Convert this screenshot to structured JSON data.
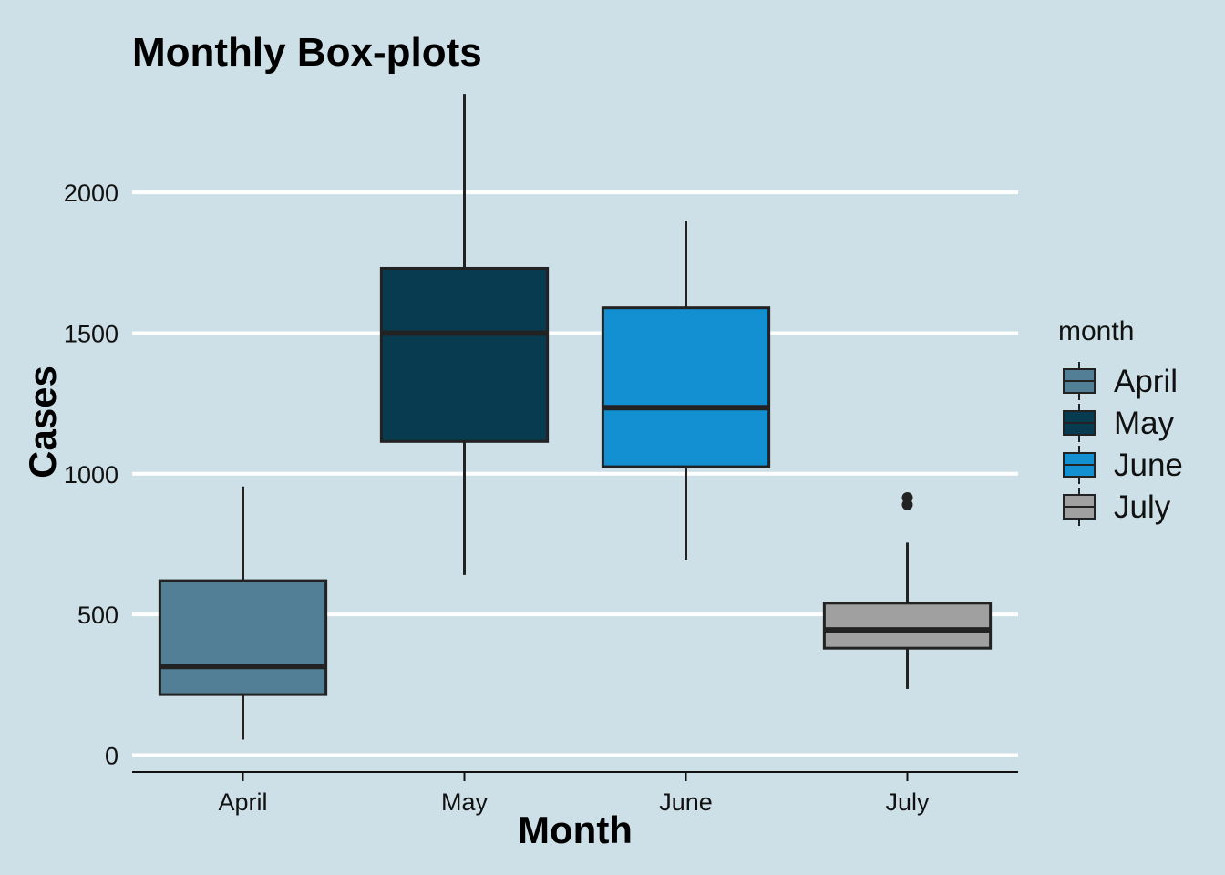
{
  "chart_data": {
    "type": "boxplot",
    "title": "Monthly Box-plots",
    "xlabel": "Month",
    "ylabel": "Cases",
    "ylim": [
      -60,
      2360
    ],
    "yticks": [
      0,
      500,
      1000,
      1500,
      2000
    ],
    "grid": "horizontal major lines",
    "legend": {
      "title": "month",
      "position": "right"
    },
    "categories": [
      "April",
      "May",
      "June",
      "July"
    ],
    "series": [
      {
        "name": "April",
        "color": "#527f96",
        "whisker_low": 55,
        "q1": 215,
        "median": 315,
        "q3": 620,
        "whisker_high": 955,
        "outliers": []
      },
      {
        "name": "May",
        "color": "#083a50",
        "whisker_low": 640,
        "q1": 1115,
        "median": 1500,
        "q3": 1730,
        "whisker_high": 2350,
        "outliers": []
      },
      {
        "name": "June",
        "color": "#1390d2",
        "whisker_low": 695,
        "q1": 1025,
        "median": 1235,
        "q3": 1590,
        "whisker_high": 1900,
        "outliers": []
      },
      {
        "name": "July",
        "color": "#a0a0a0",
        "whisker_low": 235,
        "q1": 380,
        "median": 445,
        "q3": 540,
        "whisker_high": 755,
        "outliers": [
          890,
          915
        ]
      }
    ]
  }
}
